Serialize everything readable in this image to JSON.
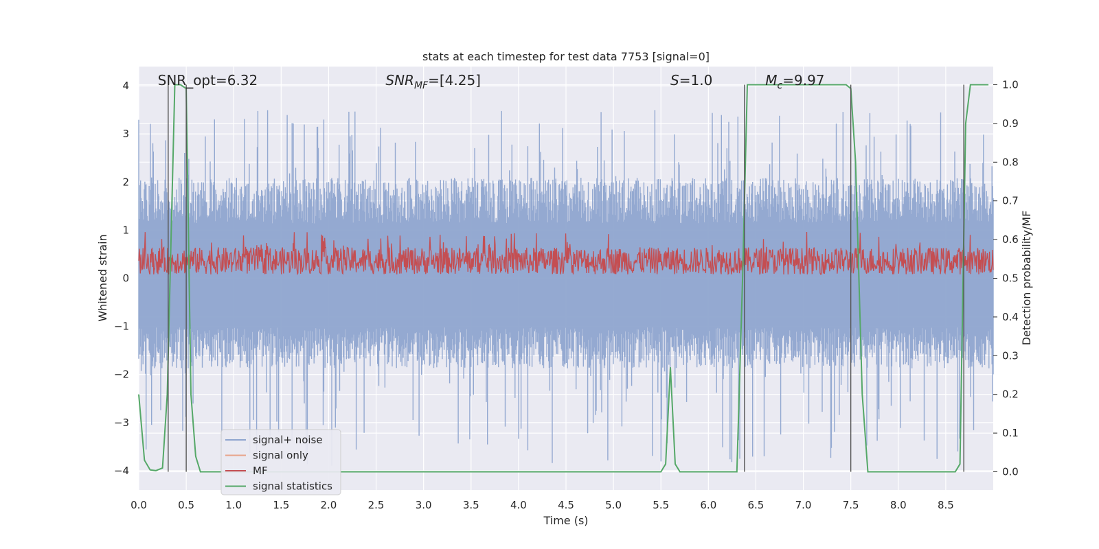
{
  "chart_data": {
    "type": "line",
    "title": "stats at each timestep for test data 7753 [signal=0]",
    "xlabel": "Time (s)",
    "ylabel": "Whitened strain",
    "ylabel_right": "Detection probability/MF",
    "xlim": [
      0.0,
      9.0
    ],
    "ylim": [
      -4.4,
      4.4
    ],
    "ylim_right": [
      -0.047,
      1.047
    ],
    "x_ticks": [
      "0.0",
      "0.5",
      "1.0",
      "1.5",
      "2.0",
      "2.5",
      "3.0",
      "3.5",
      "4.0",
      "4.5",
      "5.0",
      "5.5",
      "6.0",
      "6.5",
      "7.0",
      "7.5",
      "8.0",
      "8.5"
    ],
    "y_ticks": [
      "−4",
      "−3",
      "−2",
      "−1",
      "0",
      "1",
      "2",
      "3",
      "4"
    ],
    "y_ticks_right": [
      "0.0",
      "0.1",
      "0.2",
      "0.3",
      "0.4",
      "0.5",
      "0.6",
      "0.7",
      "0.8",
      "0.9",
      "1.0"
    ],
    "grid": true,
    "legend_position": "lower-left",
    "annotations": [
      {
        "id": "snr-opt",
        "text": "SNR_opt=6.32",
        "x": 0.2
      },
      {
        "id": "snr-mf",
        "text": "SNR_MF=[4.25]",
        "x": 2.6
      },
      {
        "id": "s-val",
        "text": "S=1.0",
        "x": 5.6
      },
      {
        "id": "mc-val",
        "text": "M_c=9.97",
        "x": 6.6
      }
    ],
    "vertical_markers": [
      0.31,
      0.5,
      6.38,
      7.5,
      8.69
    ],
    "series": [
      {
        "name": "signal+ noise",
        "color": "#8fa5cf",
        "axis": "left",
        "style": "dense noise band",
        "band_low": -1.7,
        "band_high": 1.9,
        "peak_max": 3.5,
        "peak_min": -3.9
      },
      {
        "name": "signal only",
        "color": "#e8a48a",
        "axis": "left",
        "values": []
      },
      {
        "name": "MF",
        "color": "#c44e52",
        "axis": "right",
        "style": "noisy band",
        "band_low": 0.51,
        "band_high": 0.58,
        "peak_max": 0.62
      },
      {
        "name": "signal statistics",
        "color": "#55a868",
        "axis": "right",
        "x": [
          0.0,
          0.06,
          0.12,
          0.18,
          0.25,
          0.3,
          0.34,
          0.38,
          0.44,
          0.5,
          0.55,
          0.6,
          0.65,
          1.0,
          5.5,
          5.55,
          5.6,
          5.65,
          5.7,
          5.75,
          6.3,
          6.36,
          6.41,
          6.45,
          7.3,
          7.45,
          7.5,
          7.55,
          7.62,
          7.68,
          8.0,
          8.6,
          8.65,
          8.71,
          8.76,
          8.8,
          8.95
        ],
        "y": [
          0.2,
          0.03,
          0.005,
          0.003,
          0.01,
          0.2,
          0.6,
          1.0,
          1.0,
          0.99,
          0.2,
          0.04,
          0.0,
          0.0,
          0.0,
          0.02,
          0.27,
          0.02,
          0.0,
          0.0,
          0.0,
          0.5,
          1.0,
          1.0,
          1.0,
          1.0,
          0.99,
          0.8,
          0.2,
          0.0,
          0.0,
          0.0,
          0.02,
          0.9,
          1.0,
          1.0,
          1.0
        ]
      }
    ]
  }
}
